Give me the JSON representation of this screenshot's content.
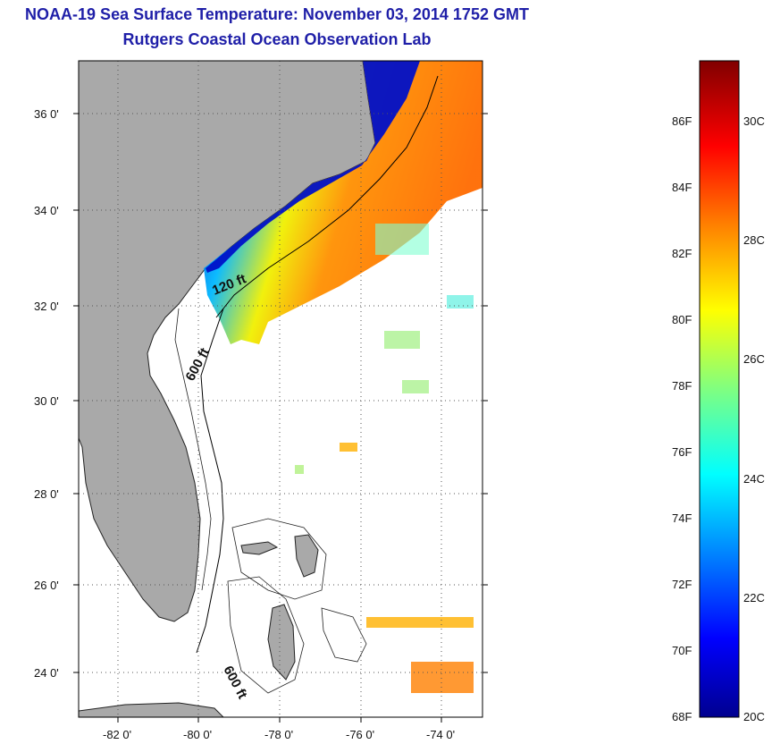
{
  "header": {
    "title": "NOAA-19 Sea Surface Temperature:  November 03, 2014 1752 GMT",
    "subtitle": "Rutgers Coastal Ocean Observation Lab"
  },
  "map": {
    "lat_ticks": [
      "36 0'",
      "34 0'",
      "32 0'",
      "30 0'",
      "28 0'",
      "26 0'",
      "24 0'"
    ],
    "lon_ticks": [
      "-82 0'",
      "-80 0'",
      "-78 0'",
      "-76 0'",
      "-74 0'"
    ],
    "contour_labels": {
      "depth_120": "120 ft",
      "depth_600_north": "600 ft",
      "depth_600_south": "600 ft"
    },
    "colors": {
      "land": "#a9a9a9",
      "ocean_no_data": "#ffffff",
      "grid": "#555555"
    }
  },
  "colorbar": {
    "fahrenheit_labels": [
      "86F",
      "84F",
      "82F",
      "80F",
      "78F",
      "76F",
      "74F",
      "72F",
      "70F",
      "68F"
    ],
    "celsius_labels": [
      "30C",
      "28C",
      "26C",
      "24C",
      "22C",
      "20C"
    ],
    "scale": "jet",
    "colors": [
      "#00008f",
      "#0000ff",
      "#0080ff",
      "#00ffff",
      "#80ff80",
      "#ffff00",
      "#ff8000",
      "#ff0000",
      "#800000"
    ]
  }
}
